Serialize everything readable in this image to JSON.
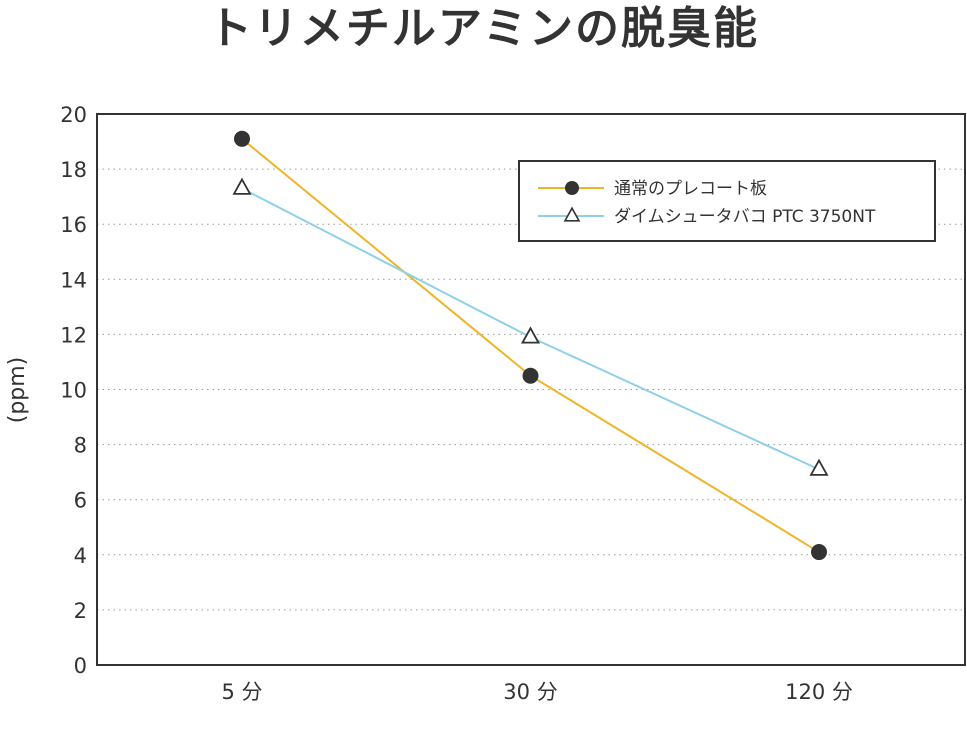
{
  "chart_data": {
    "type": "line",
    "title": "トリメチルアミンの脱臭能",
    "ylabel": "(ppm)",
    "xlabel": "",
    "categories": [
      "5 分",
      "30 分",
      "120 分"
    ],
    "ylim": [
      0,
      20
    ],
    "yticks": [
      0,
      2,
      4,
      6,
      8,
      10,
      12,
      14,
      16,
      18,
      20
    ],
    "grid": "horizontal-dotted",
    "legend": "top-right",
    "series": [
      {
        "name": "通常のプレコート板",
        "values": [
          19.1,
          10.5,
          4.1
        ],
        "color": "#f0b429",
        "marker": "filled-circle"
      },
      {
        "name": "ダイムシュータバコ PTC 3750NT",
        "values": [
          17.3,
          11.9,
          7.1
        ],
        "color": "#8fd0e8",
        "marker": "open-triangle"
      }
    ]
  }
}
